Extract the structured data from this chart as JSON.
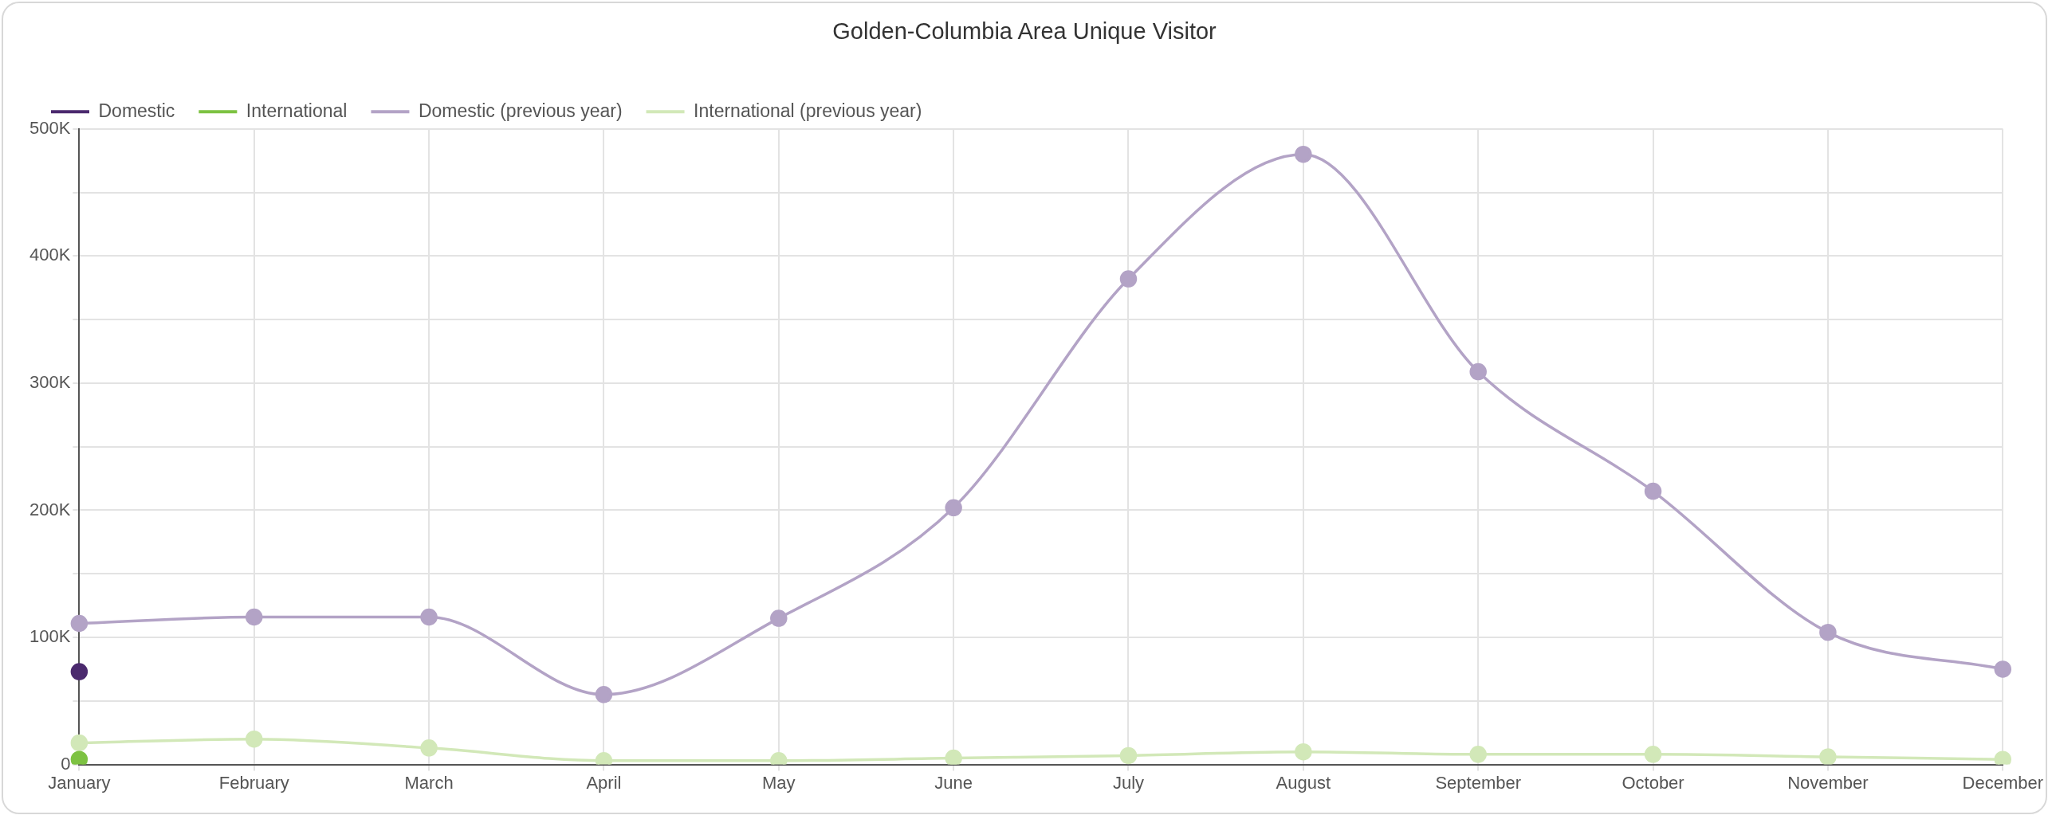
{
  "chart_data": {
    "type": "line",
    "title": "Golden-Columbia Area Unique Visitor",
    "categories": [
      "January",
      "February",
      "March",
      "April",
      "May",
      "June",
      "July",
      "August",
      "September",
      "October",
      "November",
      "December"
    ],
    "series": [
      {
        "name": "Domestic",
        "color": "#4b2a6e",
        "values": [
          73000,
          null,
          null,
          null,
          null,
          null,
          null,
          null,
          null,
          null,
          null,
          null
        ]
      },
      {
        "name": "International",
        "color": "#7dc242",
        "values": [
          4000,
          null,
          null,
          null,
          null,
          null,
          null,
          null,
          null,
          null,
          null,
          null
        ]
      },
      {
        "name": "Domestic (previous year)",
        "color": "#b3a3c6",
        "values": [
          111000,
          116000,
          116000,
          55000,
          115000,
          202000,
          382000,
          480000,
          309000,
          215000,
          104000,
          75000
        ]
      },
      {
        "name": "International (previous year)",
        "color": "#d2e8b8",
        "values": [
          17000,
          20000,
          13000,
          3000,
          3000,
          5000,
          7000,
          10000,
          8000,
          8000,
          6000,
          4000
        ]
      }
    ],
    "ylim": [
      0,
      500000
    ],
    "yticks": [
      {
        "value": 0,
        "label": "0"
      },
      {
        "value": 50000,
        "label": null
      },
      {
        "value": 100000,
        "label": "100K"
      },
      {
        "value": 150000,
        "label": null
      },
      {
        "value": 200000,
        "label": "200K"
      },
      {
        "value": 250000,
        "label": null
      },
      {
        "value": 300000,
        "label": "300K"
      },
      {
        "value": 350000,
        "label": null
      },
      {
        "value": 400000,
        "label": "400K"
      },
      {
        "value": 450000,
        "label": null
      },
      {
        "value": 500000,
        "label": "500K"
      }
    ],
    "grid": true,
    "legend": "top left",
    "marker": "circle",
    "line_style": "solid"
  }
}
